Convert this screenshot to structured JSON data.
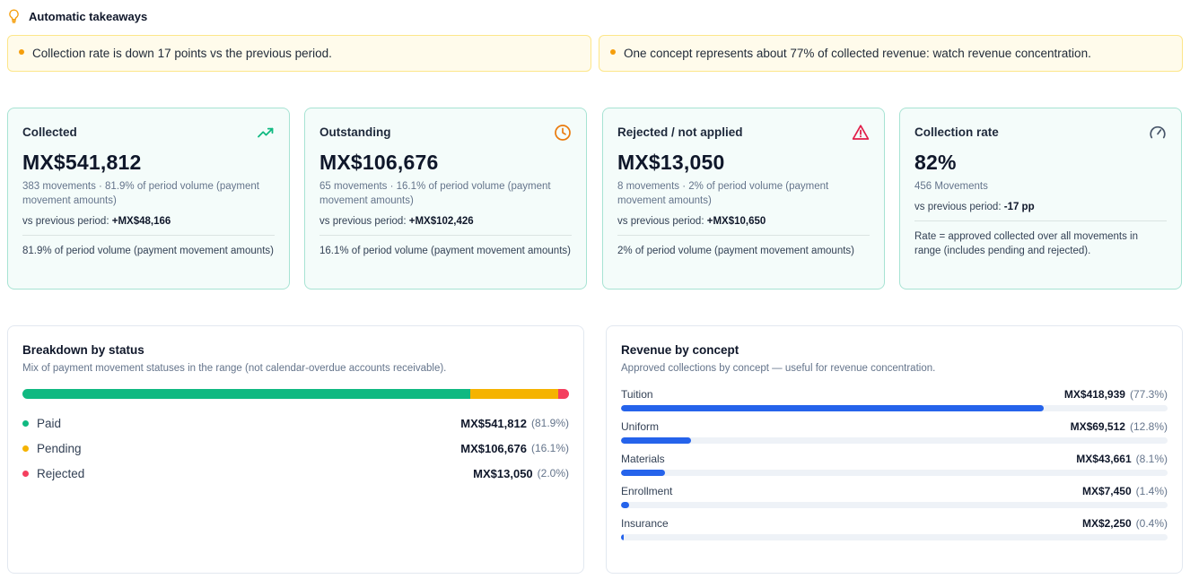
{
  "takeaways": {
    "title": "Automatic takeaways",
    "items": [
      "Collection rate is down 17 points vs the previous period.",
      "One concept represents about 77% of collected revenue: watch revenue concentration."
    ]
  },
  "kpis": {
    "collected": {
      "title": "Collected",
      "icon": "trending-up-icon",
      "value": "MX$541,812",
      "sub": "383 movements · 81.9% of period volume (payment movement amounts)",
      "vs_label": "vs previous period:",
      "vs_value": "+MX$48,166",
      "note": "81.9% of period volume (payment movement amounts)"
    },
    "outstanding": {
      "title": "Outstanding",
      "icon": "clock-icon",
      "value": "MX$106,676",
      "sub": "65 movements · 16.1% of period volume (payment movement amounts)",
      "vs_label": "vs previous period:",
      "vs_value": "+MX$102,426",
      "note": "16.1% of period volume (payment movement amounts)"
    },
    "rejected": {
      "title": "Rejected / not applied",
      "icon": "warning-icon",
      "value": "MX$13,050",
      "sub": "8 movements · 2% of period volume (payment movement amounts)",
      "vs_label": "vs previous period:",
      "vs_value": "+MX$10,650",
      "note": "2% of period volume (payment movement amounts)"
    },
    "rate": {
      "title": "Collection rate",
      "icon": "gauge-icon",
      "value": "82%",
      "sub": "456 Movements",
      "vs_label": "vs previous period:",
      "vs_value": "-17 pp",
      "note": "Rate = approved collected over all movements in range (includes pending and rejected)."
    }
  },
  "status_breakdown": {
    "title": "Breakdown by status",
    "subtitle": "Mix of payment movement statuses in the range (not calendar-overdue accounts receivable).",
    "items": [
      {
        "name": "Paid",
        "value": "MX$541,812",
        "pct": "(81.9%)",
        "share": 81.9,
        "color": "#10b981"
      },
      {
        "name": "Pending",
        "value": "MX$106,676",
        "pct": "(16.1%)",
        "share": 16.1,
        "color": "#f5b301"
      },
      {
        "name": "Rejected",
        "value": "MX$13,050",
        "pct": "(2.0%)",
        "share": 2.0,
        "color": "#f43f5e"
      }
    ]
  },
  "revenue_by_concept": {
    "title": "Revenue by concept",
    "subtitle": "Approved collections by concept — useful for revenue concentration.",
    "bar_color": "#2563eb",
    "items": [
      {
        "name": "Tuition",
        "value": "MX$418,939",
        "pct": "(77.3%)",
        "share": 77.3
      },
      {
        "name": "Uniform",
        "value": "MX$69,512",
        "pct": "(12.8%)",
        "share": 12.8
      },
      {
        "name": "Materials",
        "value": "MX$43,661",
        "pct": "(8.1%)",
        "share": 8.1
      },
      {
        "name": "Enrollment",
        "value": "MX$7,450",
        "pct": "(1.4%)",
        "share": 1.4
      },
      {
        "name": "Insurance",
        "value": "MX$2,250",
        "pct": "(0.4%)",
        "share": 0.4
      }
    ]
  }
}
